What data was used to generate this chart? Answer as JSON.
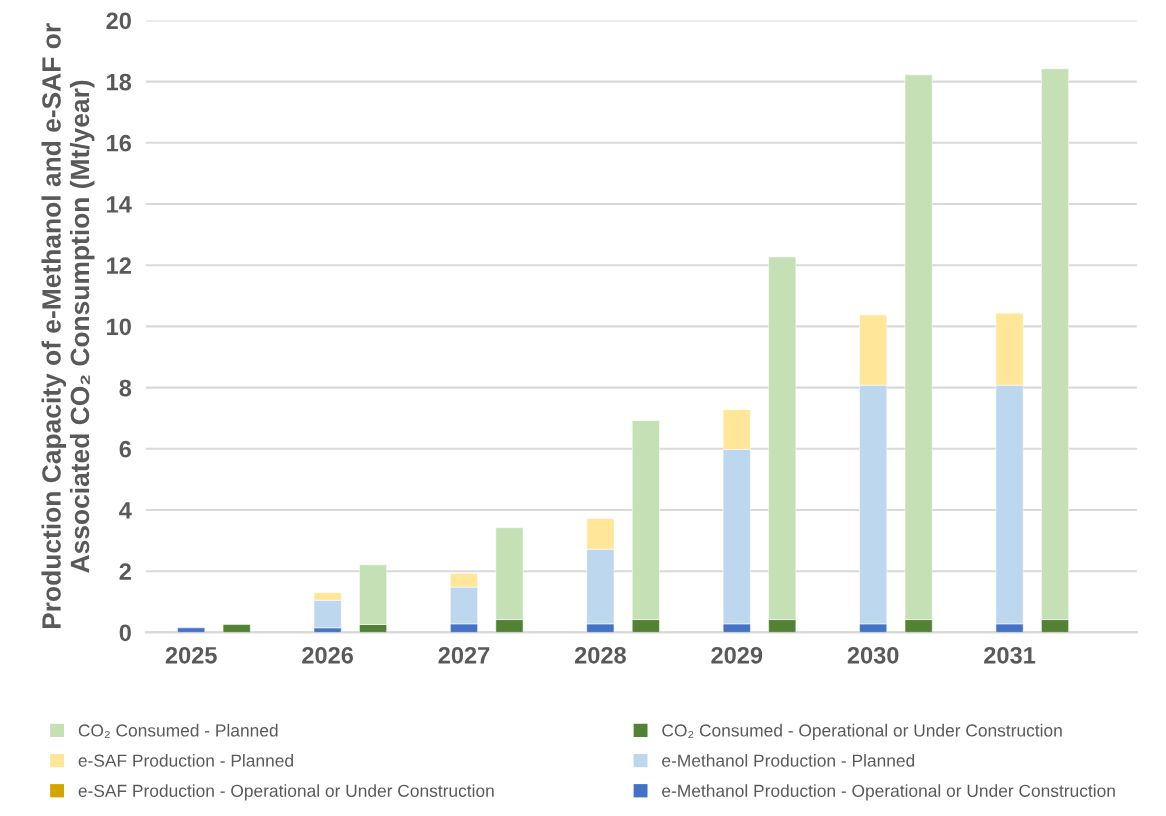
{
  "chart_data": {
    "type": "bar",
    "stacked": true,
    "ylabel": "Production Capacity of e-Methanol and e-SAF or\nAssociated CO₂ Consumption (Mt/year)",
    "categories": [
      "2025",
      null,
      null,
      "2026",
      null,
      null,
      "2027",
      null,
      null,
      "2028",
      null,
      null,
      "2029",
      null,
      null,
      "2030",
      null,
      null,
      "2031",
      null,
      null
    ],
    "series": [
      {
        "name": "e-Methanol Production - Operational or Under Construction",
        "color": "#4472c4",
        "values": [
          0.15,
          null,
          null,
          0.15,
          null,
          null,
          0.28,
          null,
          null,
          0.28,
          null,
          null,
          0.28,
          null,
          null,
          0.28,
          null,
          null,
          0.28,
          null,
          null
        ]
      },
      {
        "name": "e-SAF Production - Operational or Under Construction",
        "color": "#d4a500",
        "values": [
          null,
          null,
          null,
          null,
          null,
          null,
          null,
          null,
          null,
          null,
          null,
          null,
          null,
          null,
          null,
          null,
          null,
          null,
          null,
          null,
          null
        ]
      },
      {
        "name": "e-Methanol Production - Planned",
        "color": "#bdd7ee",
        "values": [
          null,
          null,
          null,
          0.9,
          null,
          null,
          1.2,
          null,
          null,
          2.44,
          null,
          null,
          5.7,
          null,
          null,
          7.8,
          null,
          null,
          7.8,
          null,
          null
        ]
      },
      {
        "name": "e-SAF Production - Planned",
        "color": "#ffe699",
        "values": [
          null,
          null,
          null,
          0.25,
          null,
          null,
          0.45,
          null,
          null,
          1.0,
          null,
          null,
          1.3,
          null,
          null,
          2.3,
          null,
          null,
          2.35,
          null,
          null
        ]
      },
      {
        "name": "CO₂ Consumed - Operational or Under Construction",
        "color": "#548235",
        "values": [
          null,
          0.26,
          null,
          null,
          0.26,
          null,
          null,
          0.42,
          null,
          null,
          0.42,
          null,
          null,
          0.42,
          null,
          null,
          0.42,
          null,
          null,
          0.42,
          null
        ]
      },
      {
        "name": "CO₂ Consumed - Planned",
        "color": "#c5e0b4",
        "values": [
          null,
          null,
          null,
          null,
          1.95,
          null,
          null,
          3.0,
          null,
          null,
          6.5,
          null,
          null,
          11.85,
          null,
          null,
          17.8,
          null,
          null,
          18.0,
          null
        ]
      }
    ],
    "ylim": [
      0,
      20
    ],
    "yticks": [
      0,
      2,
      4,
      6,
      8,
      10,
      12,
      14,
      16,
      18,
      20
    ],
    "grid": "y",
    "legend": "bottom"
  }
}
